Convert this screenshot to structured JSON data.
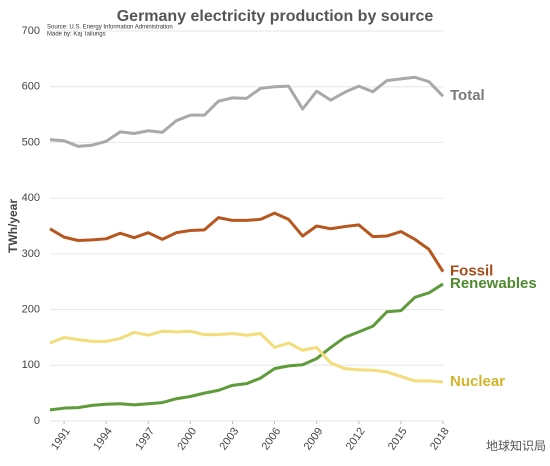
{
  "chart_data": {
    "type": "line",
    "title": "Germany electricity production by source",
    "source": "Source: U.S. Energy Information Administration",
    "credit": "Made by: Kaj Tallungs",
    "watermark": "地球知识局",
    "ylabel": "TWh/year",
    "x": [
      1990,
      1991,
      1992,
      1993,
      1994,
      1995,
      1996,
      1997,
      1998,
      1999,
      2000,
      2001,
      2002,
      2003,
      2004,
      2005,
      2006,
      2007,
      2008,
      2009,
      2010,
      2011,
      2012,
      2013,
      2014,
      2015,
      2016,
      2017,
      2018
    ],
    "xlim": [
      1990,
      2018
    ],
    "xticks": [
      1991,
      1994,
      1997,
      2000,
      2003,
      2006,
      2009,
      2012,
      2015,
      2018
    ],
    "ylim": [
      0,
      700
    ],
    "yticks": [
      0,
      100,
      200,
      300,
      400,
      500,
      600,
      700
    ],
    "grid": true,
    "series": [
      {
        "name": "Total",
        "color": "#a9a9a9",
        "label_color": "#7a7a7a",
        "values": [
          505,
          503,
          493,
          495,
          502,
          519,
          516,
          521,
          518,
          539,
          549,
          549,
          574,
          580,
          579,
          597,
          600,
          601,
          560,
          592,
          576,
          590,
          601,
          591,
          611,
          614,
          617,
          609,
          583
        ]
      },
      {
        "name": "Fossil",
        "color": "#b5571f",
        "label_color": "#a54d18",
        "values": [
          345,
          330,
          324,
          325,
          327,
          337,
          329,
          338,
          326,
          338,
          342,
          343,
          365,
          360,
          360,
          362,
          373,
          362,
          332,
          350,
          345,
          349,
          352,
          331,
          332,
          340,
          326,
          308,
          268
        ]
      },
      {
        "name": "Renewables",
        "color": "#5e9b3a",
        "label_color": "#4f8a2e",
        "values": [
          20,
          23,
          24,
          28,
          30,
          31,
          29,
          31,
          33,
          40,
          44,
          50,
          55,
          64,
          67,
          77,
          94,
          99,
          101,
          112,
          132,
          150,
          160,
          170,
          196,
          198,
          222,
          230,
          246
        ]
      },
      {
        "name": "Nuclear",
        "color": "#f2dd7a",
        "label_color": "#d2b52a",
        "values": [
          140,
          150,
          146,
          143,
          143,
          148,
          159,
          154,
          161,
          160,
          161,
          155,
          155,
          157,
          154,
          157,
          132,
          140,
          127,
          132,
          104,
          94,
          92,
          91,
          88,
          80,
          72,
          72,
          70
        ]
      }
    ]
  }
}
